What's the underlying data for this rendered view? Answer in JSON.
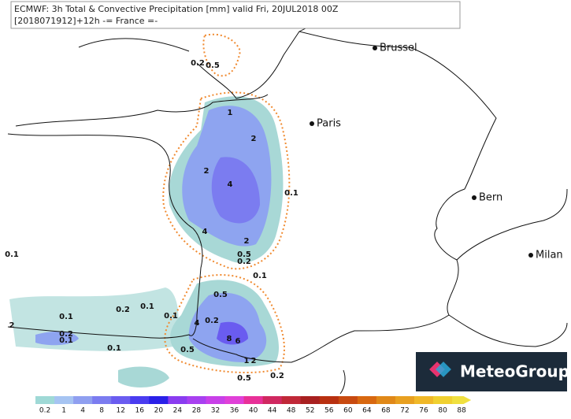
{
  "header": {
    "title": "ECMWF: 3h Total & Convective Precipitation [mm] valid Fri, 20JUL2018 00Z",
    "subtitle": "[2018071912]+12h -= France =-"
  },
  "cities": [
    "Brussel",
    "Paris",
    "Bern",
    "Milan"
  ],
  "contour_labels": [
    "0.2",
    "0.5",
    "1",
    "2",
    "2",
    "4",
    "0.1",
    "4",
    "2",
    "0.5",
    "0.2",
    "0.1",
    "0.5",
    "0.1",
    "0.2",
    "0.1",
    "0.1",
    "0.2",
    "4",
    "8",
    "6",
    "0.2",
    "0.1",
    "0.1",
    "0.5",
    "1",
    "2",
    "0.2",
    "0.5",
    "0.1",
    "2"
  ],
  "colorbar": {
    "ticks": [
      0.2,
      1,
      4,
      8,
      12,
      16,
      20,
      24,
      28,
      32,
      36,
      40,
      44,
      48,
      52,
      56,
      60,
      64,
      68,
      72,
      76,
      80,
      88
    ],
    "colors": [
      "#9fd9d6",
      "#a6c4f2",
      "#8f9ff0",
      "#7b7cf0",
      "#6a5cf0",
      "#4a3cf0",
      "#2a20e8",
      "#8a3cf0",
      "#a840f0",
      "#c840e8",
      "#e040d8",
      "#e83098",
      "#d02860",
      "#c02838",
      "#a82020",
      "#b83010",
      "#c84a10",
      "#d86810",
      "#e08818",
      "#e8a020",
      "#f0b828",
      "#f0d030",
      "#f0e040"
    ]
  },
  "logo": "MeteoGroup"
}
